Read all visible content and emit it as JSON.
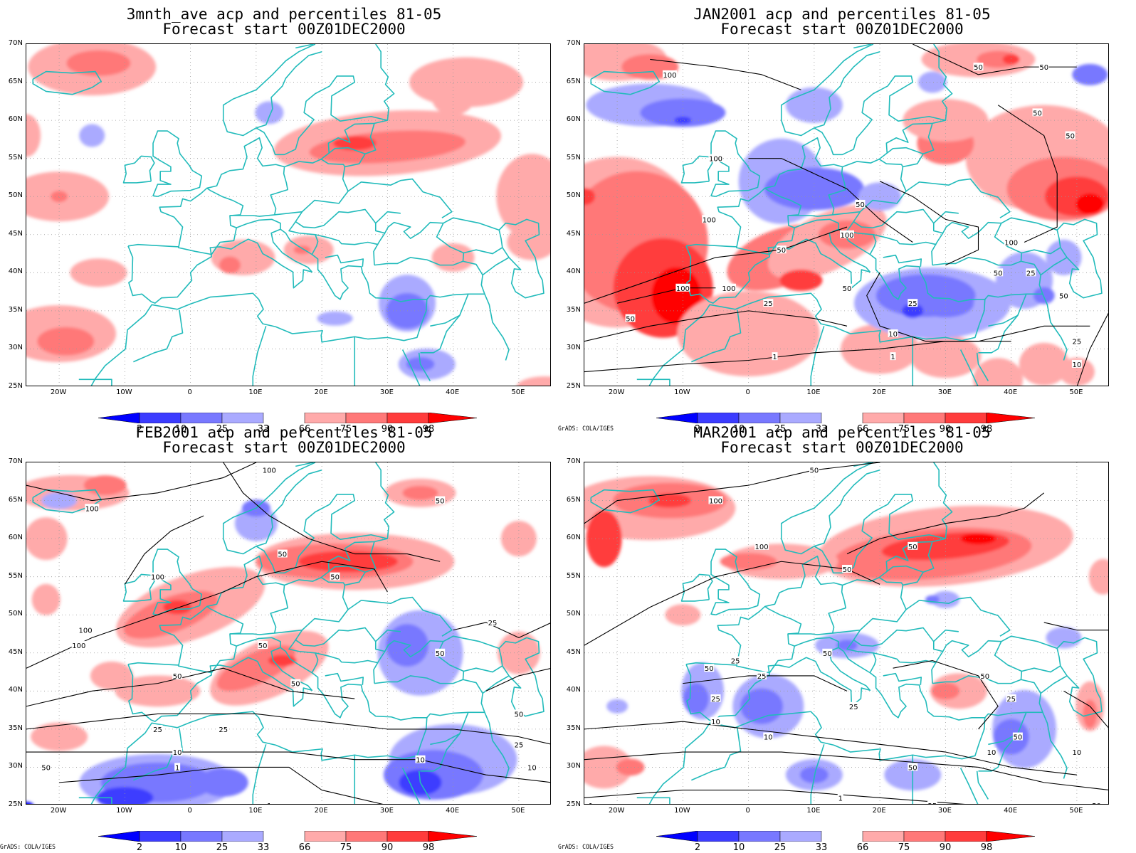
{
  "palette": {
    "blue_2": "#0000ff",
    "blue_10": "#3c3cff",
    "blue_25": "#7878ff",
    "blue_33": "#aaaaff",
    "red_66": "#ffaaaa",
    "red_75": "#ff7878",
    "red_90": "#ff3c3c",
    "red_98": "#ff0000",
    "coast": "#22bbbb",
    "contour": "#000000"
  },
  "axes": {
    "lat_labels": [
      "70N",
      "65N",
      "60N",
      "55N",
      "50N",
      "45N",
      "40N",
      "35N",
      "30N",
      "25N"
    ],
    "lon_labels": [
      "20W",
      "10W",
      "0",
      "10E",
      "20E",
      "30E",
      "40E",
      "50E"
    ],
    "lat_range": [
      25,
      70
    ],
    "lon_range": [
      -25,
      55
    ]
  },
  "colorbar": {
    "labels": [
      "2",
      "10",
      "25",
      "33",
      "66",
      "75",
      "90",
      "98"
    ]
  },
  "credit": "GrADS: COLA/IGES",
  "panels": [
    {
      "id": "3mnth",
      "title_line1": "3mnth_ave acp and percentiles 81-05",
      "title_line2": "Forecast start 00Z01DEC2000",
      "show_credit": false,
      "contour_labels": []
    },
    {
      "id": "jan",
      "title_line1": "JAN2001 acp and percentiles 81-05",
      "title_line2": "Forecast start 00Z01DEC2000",
      "show_credit": true,
      "contour_labels": [
        "100",
        "50",
        "50",
        "50",
        "50",
        "100",
        "50",
        "100",
        "100",
        "100",
        "50",
        "50",
        "100",
        "50",
        "25",
        "25",
        "10",
        "1",
        "1",
        "25",
        "50",
        "100",
        "10",
        "50",
        "25"
      ]
    },
    {
      "id": "feb",
      "title_line1": "FEB2001 acp and percentiles 81-05",
      "title_line2": "Forecast start 00Z01DEC2000",
      "show_credit": true,
      "contour_labels": [
        "100",
        "100",
        "50",
        "50",
        "100",
        "50",
        "50",
        "100",
        "100",
        "50",
        "50",
        "50",
        "50",
        "25",
        "25",
        "10",
        "10",
        "1",
        "1",
        "25",
        "10",
        "50",
        "25"
      ]
    },
    {
      "id": "mar",
      "title_line1": "MAR2001 acp and percentiles 81-05",
      "title_line2": "Forecast start 00Z01DEC2000",
      "show_credit": true,
      "contour_labels": [
        "50",
        "100",
        "100",
        "50",
        "50",
        "25",
        "50",
        "50",
        "25",
        "25",
        "25",
        "50",
        "10",
        "25",
        "50",
        "50",
        "10",
        "25",
        "1",
        "1",
        "10",
        "10",
        "50"
      ]
    }
  ]
}
